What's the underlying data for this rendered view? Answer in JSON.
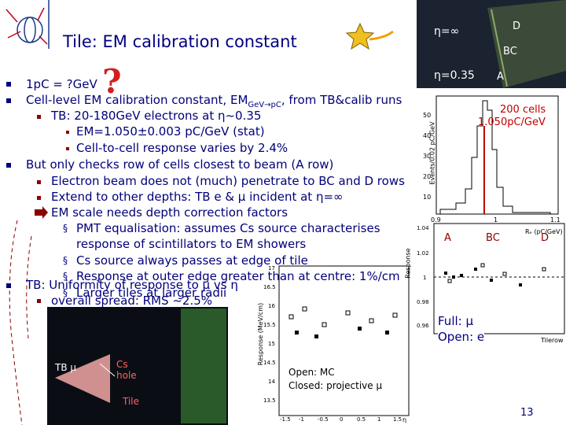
{
  "header": {
    "title": "Tile: EM calibration constant"
  },
  "bullets": [
    {
      "text": "1pC = ?GeV"
    },
    {
      "text": "Cell-level EM calibration constant, EM",
      "sub": "GeV→pC",
      "text_after": ", from TB&calib runs",
      "children": [
        {
          "text": "TB: 20-180GeV electrons at η~0.35",
          "children": [
            {
              "text": "EM=1.050±0.003 pC/GeV (stat)"
            },
            {
              "text": "Cell-to-cell response varies by 2.4%"
            }
          ]
        }
      ]
    },
    {
      "text": "But only checks row of cells closest to beam (A row)",
      "children": [
        {
          "text": "Electron beam does not (much) penetrate to BC and D rows"
        },
        {
          "text": "Extend to other depths: TB e & μ incident at η=∞"
        },
        {
          "text": "EM scale needs depth correction factors",
          "children": [
            {
              "text": "PMT equalisation: assumes Cs source characterises response of scintillators to EM showers"
            },
            {
              "text": "Cs source always passes at edge of tile"
            },
            {
              "text": "Response at outer edge greater than at centre: 1%/cm"
            },
            {
              "text": "Larger tiles at larger radii"
            }
          ]
        }
      ]
    },
    {
      "text": "TB: Uniformity of response to μ vs η",
      "children": [
        {
          "text": "overall spread: RMS ~2.5%"
        }
      ]
    }
  ],
  "figures": {
    "detector_photo": {
      "labels": [
        "η=∞",
        "η=0.35",
        "D",
        "BC",
        "A"
      ]
    },
    "histogram": {
      "annotation": [
        "200 cells",
        "1.050pC/GeV"
      ],
      "y_label": "Events/0.02 pC/GeV",
      "x_label": "Rₑ (pC/GeV)",
      "yticks": [
        "50",
        "40",
        "30",
        "20",
        "10"
      ],
      "xticks": [
        "0.9",
        "1",
        "1.1"
      ]
    },
    "depth_response": {
      "labels": [
        "A",
        "BC",
        "D"
      ],
      "legend": [
        "Full: μ",
        "Open: e"
      ],
      "y_label": "Response",
      "x_label": "Tilerow",
      "yticks": [
        "1.04",
        "1.02",
        "1",
        "0.98",
        "0.96"
      ]
    },
    "eta_response": {
      "legend": [
        "Open: MC",
        "Closed: projective μ"
      ],
      "y_label": "Response (MeV/cm)",
      "x_label": "η",
      "yticks": [
        "17",
        "16.5",
        "16",
        "15.5",
        "15",
        "14.5",
        "14",
        "13.5"
      ],
      "xticks": [
        "-1.5",
        "-1",
        "-0.5",
        "0",
        "0.5",
        "1",
        "1.5"
      ]
    },
    "tile_photo": {
      "labels": [
        "TB μ",
        "Cs hole",
        "Tile"
      ]
    }
  },
  "footer": {
    "page_number": "13"
  }
}
